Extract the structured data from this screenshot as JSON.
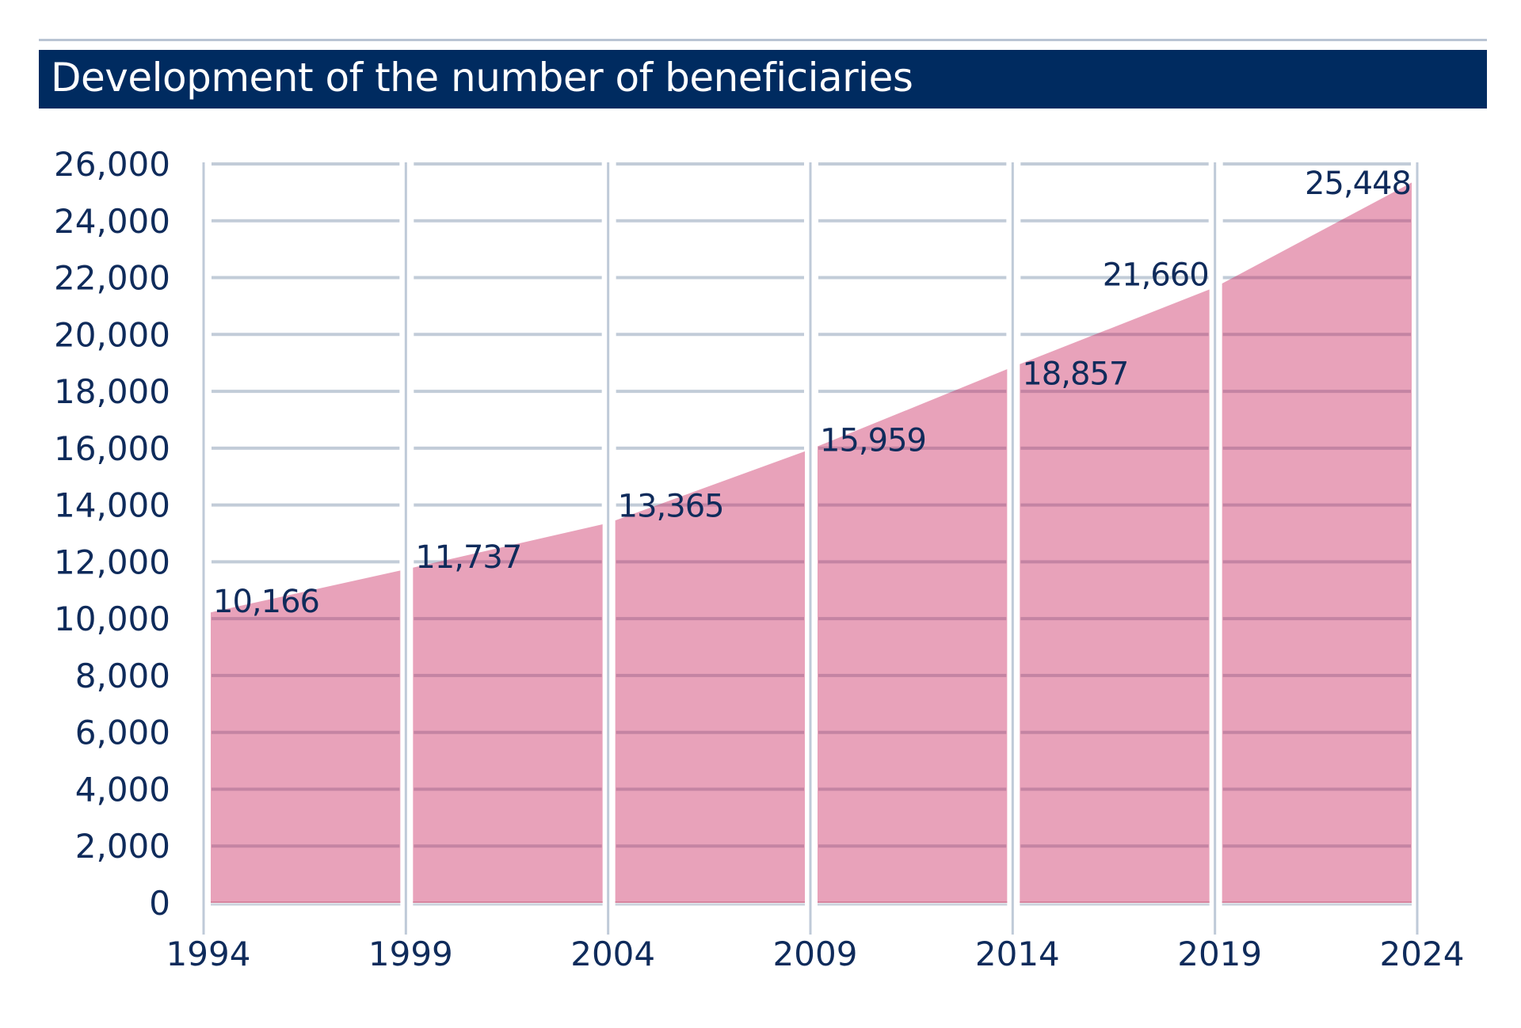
{
  "header": {
    "title": "Development of the number of beneficiaries"
  },
  "colors": {
    "title_bar": "#002b60",
    "text": "#0f2b5b",
    "area_fill": "#e8a2ba",
    "gridline": "#c2ccd8"
  },
  "chart_data": {
    "type": "area",
    "title": "Development of the number of beneficiaries",
    "xlabel": "",
    "ylabel": "",
    "x": [
      1994,
      1999,
      2004,
      2009,
      2014,
      2019,
      2024
    ],
    "x_tick_labels": [
      "1994",
      "1999",
      "2004",
      "2009",
      "2014",
      "2019",
      "2024"
    ],
    "series": [
      {
        "name": "Beneficiaries",
        "values": [
          10166,
          11737,
          13365,
          15959,
          18857,
          21660,
          25448
        ],
        "value_labels": [
          "10,166",
          "11,737",
          "13,365",
          "15,959",
          "18,857",
          "21,660",
          "25,448"
        ]
      }
    ],
    "y_ticks": [
      0,
      2000,
      4000,
      6000,
      8000,
      10000,
      12000,
      14000,
      16000,
      18000,
      20000,
      22000,
      24000,
      26000
    ],
    "y_tick_labels": [
      "0",
      "2,000",
      "4,000",
      "6,000",
      "8,000",
      "10,000",
      "12,000",
      "14,000",
      "16,000",
      "18,000",
      "20,000",
      "22,000",
      "24,000",
      "26,000"
    ],
    "ylim": [
      0,
      26000
    ],
    "xlim": [
      1994,
      2024
    ],
    "grid": true,
    "legend": "none"
  }
}
